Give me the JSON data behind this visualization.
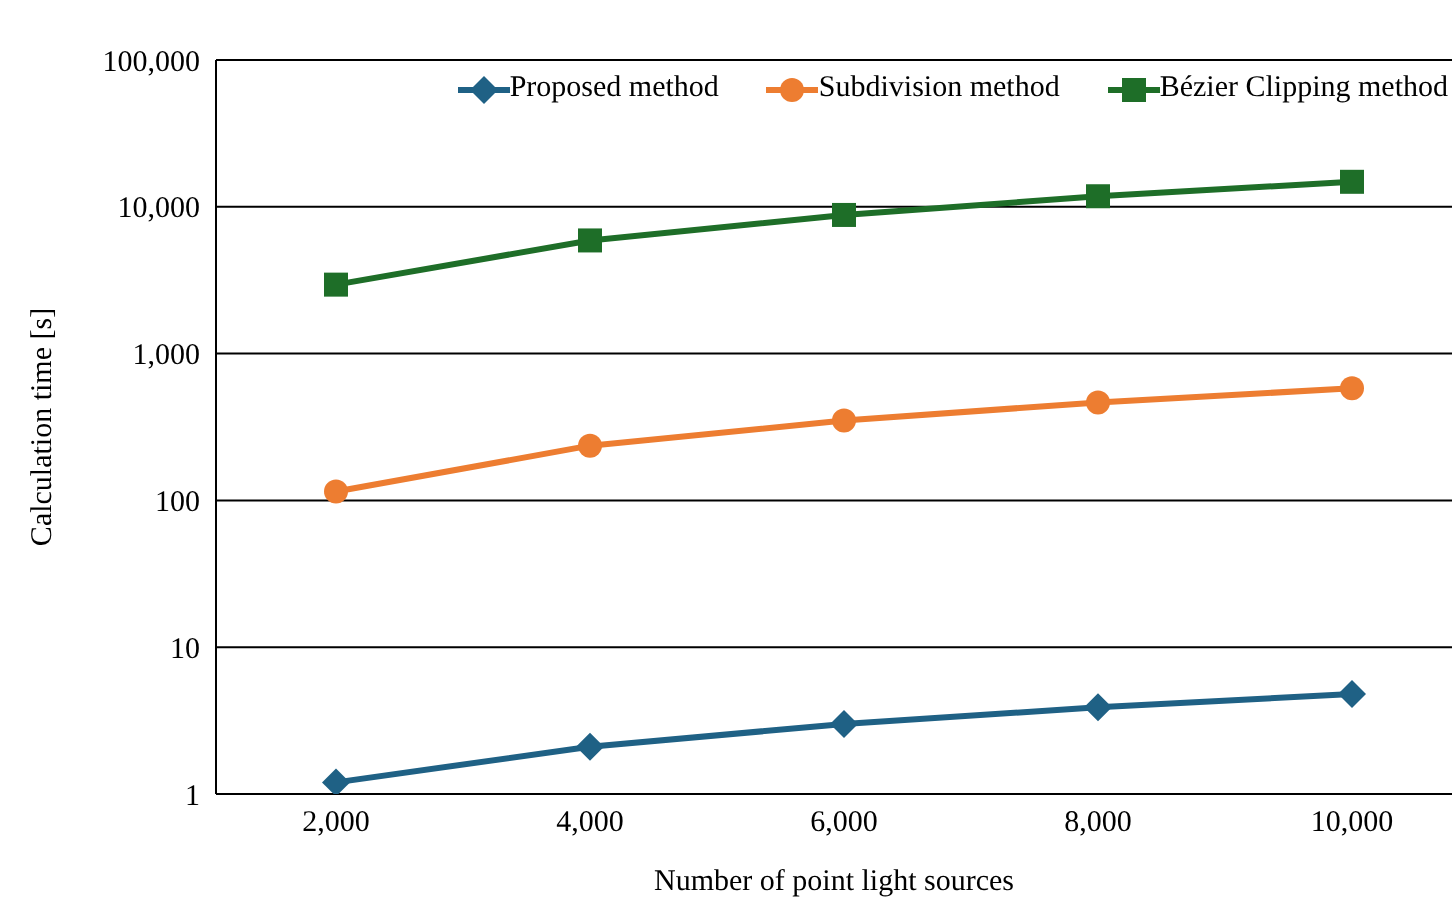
{
  "chart_data": {
    "type": "line",
    "xlabel": "Number of point light sources",
    "ylabel": "Calculation time [s]",
    "categories": [
      "2,000",
      "4,000",
      "6,000",
      "8,000",
      "10,000"
    ],
    "series": [
      {
        "name": "Proposed method",
        "color": "#1f6185",
        "marker": "diamond",
        "values": [
          1.2,
          2.1,
          3.0,
          3.9,
          4.8
        ]
      },
      {
        "name": "Subdivision method",
        "color": "#ed7d31",
        "marker": "circle",
        "values": [
          115,
          236,
          350,
          465,
          580
        ]
      },
      {
        "name": "Bézier Clipping method",
        "color": "#1e6e28",
        "marker": "square",
        "values": [
          2950,
          5900,
          8800,
          11800,
          14800
        ]
      }
    ],
    "log": "y",
    "ylim": [
      1,
      100000
    ],
    "yticks": [
      {
        "value": 1,
        "label": "1"
      },
      {
        "value": 10,
        "label": "10"
      },
      {
        "value": 100,
        "label": "100"
      },
      {
        "value": 1000,
        "label": "1,000"
      },
      {
        "value": 10000,
        "label": "10,000"
      },
      {
        "value": 100000,
        "label": "100,000"
      }
    ],
    "grid": "y",
    "legend": "top"
  }
}
